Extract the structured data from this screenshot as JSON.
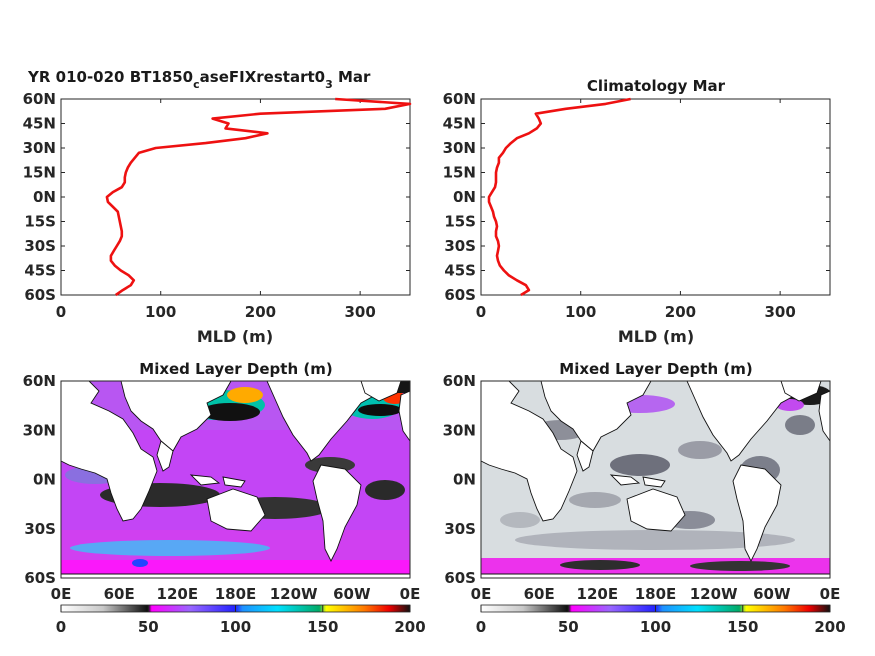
{
  "chart_data": [
    {
      "type": "line",
      "title_main": "YR 010-020 BT1850",
      "title_sub": "c",
      "title_mid": "aseFIXrestart0",
      "title_sub2": "3",
      "title_tail": " Mar",
      "xlabel": "MLD (m)",
      "xlim": [
        0,
        350
      ],
      "ylim": [
        -60,
        60
      ],
      "xticks": [
        "0",
        "100",
        "200",
        "300"
      ],
      "yticks": [
        "60N",
        "45N",
        "30N",
        "15N",
        "0N",
        "15S",
        "30S",
        "45S",
        "60S"
      ],
      "series": [
        {
          "lat": [
            -60,
            -57,
            -54,
            -51,
            -48,
            -45,
            -42,
            -39,
            -36,
            -33,
            -30,
            -27,
            -24,
            -21,
            -18,
            -15,
            -12,
            -9,
            -6,
            -3,
            0,
            3,
            6,
            9,
            12,
            15,
            18,
            21,
            24,
            27,
            30,
            33,
            36,
            39,
            42,
            45,
            48,
            51,
            54,
            57,
            60
          ],
          "mld": [
            55,
            62,
            70,
            73,
            68,
            60,
            54,
            50,
            50,
            53,
            56,
            59,
            61,
            61,
            60,
            59,
            58,
            57,
            52,
            47,
            46,
            52,
            61,
            64,
            64,
            65,
            67,
            70,
            74,
            78,
            95,
            145,
            185,
            207,
            165,
            168,
            152,
            200,
            325,
            355,
            275
          ]
        }
      ]
    },
    {
      "type": "line",
      "title": "Climatology Mar",
      "xlabel": "MLD (m)",
      "xlim": [
        0,
        350
      ],
      "ylim": [
        -60,
        60
      ],
      "xticks": [
        "0",
        "100",
        "200",
        "300"
      ],
      "yticks": [
        "60N",
        "45N",
        "30N",
        "15N",
        "0N",
        "15S",
        "30S",
        "45S",
        "60S"
      ],
      "series": [
        {
          "lat": [
            -60,
            -57,
            -54,
            -51,
            -48,
            -45,
            -42,
            -39,
            -36,
            -33,
            -30,
            -27,
            -24,
            -21,
            -18,
            -15,
            -12,
            -9,
            -6,
            -3,
            0,
            3,
            6,
            9,
            12,
            15,
            18,
            21,
            24,
            27,
            30,
            33,
            36,
            39,
            42,
            45,
            48,
            51,
            54,
            57,
            60
          ],
          "mld": [
            40,
            48,
            45,
            36,
            28,
            23,
            19,
            17,
            16,
            17,
            18,
            17,
            15,
            15,
            16,
            15,
            13,
            12,
            10,
            8,
            8,
            11,
            14,
            15,
            15,
            15,
            16,
            18,
            18,
            22,
            25,
            30,
            36,
            48,
            56,
            60,
            58,
            55,
            85,
            125,
            150
          ]
        }
      ]
    },
    {
      "type": "heatmap",
      "title": "Mixed Layer Depth (m)",
      "xticks": [
        "0E",
        "60E",
        "120E",
        "180E",
        "120W",
        "60W",
        "0E"
      ],
      "yticks": [
        "60N",
        "30N",
        "0N",
        "30S",
        "60S"
      ],
      "colorbar": {
        "ticks": [
          "0",
          "50",
          "100",
          "150",
          "200"
        ],
        "range": [
          0,
          200
        ]
      }
    },
    {
      "type": "heatmap",
      "title": "Mixed Layer Depth (m)",
      "xticks": [
        "0E",
        "60E",
        "120E",
        "180E",
        "120W",
        "60W",
        "0E"
      ],
      "yticks": [
        "60N",
        "30N",
        "0N",
        "30S",
        "60S"
      ],
      "colorbar": {
        "ticks": [
          "0",
          "50",
          "100",
          "150",
          "200"
        ],
        "range": [
          0,
          200
        ]
      }
    }
  ]
}
